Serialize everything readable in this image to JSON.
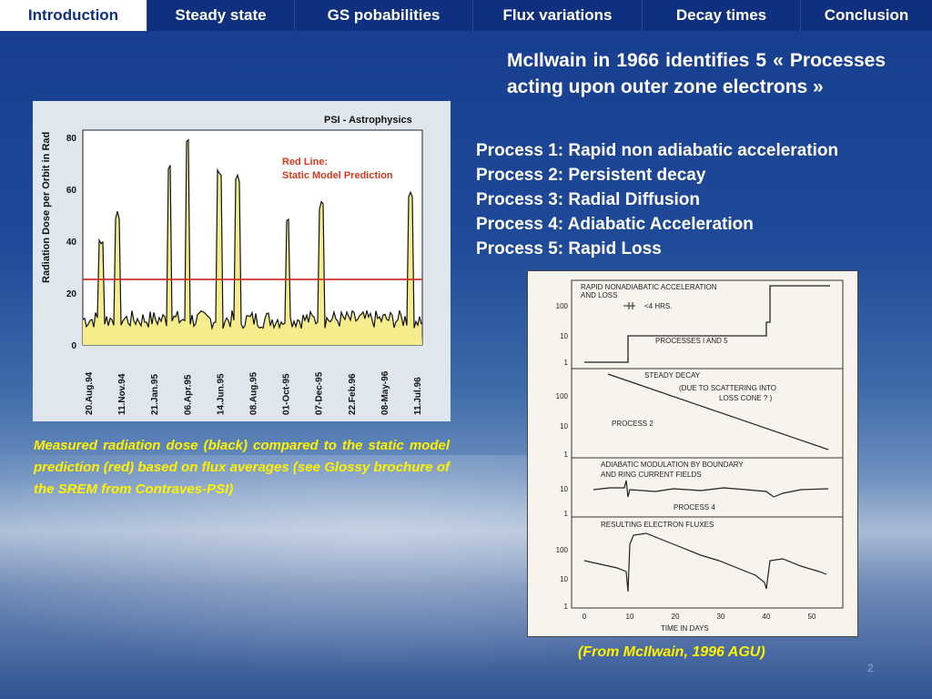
{
  "nav": {
    "tabs": [
      {
        "label": "Introduction",
        "active": true
      },
      {
        "label": "Steady state",
        "active": false
      },
      {
        "label": "GS pobabilities",
        "active": false
      },
      {
        "label": "Flux variations",
        "active": false
      },
      {
        "label": "Decay times",
        "active": false
      },
      {
        "label": "Conclusion",
        "active": false
      }
    ]
  },
  "heading": "McIlwain in 1966 identifies 5 « Processes acting upon outer zone electrons »",
  "processes": [
    "Process 1: Rapid non adiabatic acceleration",
    "Process 2: Persistent decay",
    "Process 3: Radial Diffusion",
    "Process 4: Adiabatic Acceleration",
    "Process 5: Rapid Loss"
  ],
  "left_figure": {
    "header": "PSI - Astrophysics",
    "legend_line1": "Red Line:",
    "legend_line2": "Static Model Prediction",
    "ylabel": "Radiation Dose per Orbit in Rad",
    "yticks": [
      "80",
      "60",
      "40",
      "20",
      "0"
    ],
    "xticks": [
      "20.Aug.94",
      "11.Nov.94",
      "21.Jan.95",
      "06.Apr.95",
      "14.Jun.95",
      "08.Aug.95",
      "01-Oct-95",
      "07-Dec-95",
      "22.Feb.96",
      "08-May-96",
      "11.Jul.96"
    ],
    "colors": {
      "fill": "#f5ec8c",
      "line": "#111111",
      "model": "#c8352a"
    }
  },
  "caption_left": "Measured radiation dose (black) compared to the static model prediction (red) based on flux averages (see Glossy brochure of the SREM from Contraves-PSI)",
  "right_figure": {
    "panel1_title1": "RAPID NONADIABATIC ACCELERATION",
    "panel1_title2": "AND LOSS",
    "panel1_note": "<4 HRS.",
    "panel1_label": "PROCESSES    I AND 5",
    "panel2_title1": "STEADY DECAY",
    "panel2_title2": "(DUE TO SCATTERING INTO",
    "panel2_title3": "LOSS CONE ? )",
    "panel2_label": "PROCESS    2",
    "panel3_title1": "ADIABATIC MODULATION BY BOUNDARY",
    "panel3_title2": "AND RING CURRENT FIELDS",
    "panel3_label": "PROCESS    4",
    "panel4_title": "RESULTING ELECTRON FLUXES",
    "yticks": [
      "100",
      "10",
      "1"
    ],
    "xticks": [
      "0",
      "10",
      "20",
      "30",
      "40",
      "50"
    ],
    "xlabel": "TIME IN DAYS"
  },
  "caption_right": "(From McIlwain, 1996 AGU)",
  "page_number": "2"
}
